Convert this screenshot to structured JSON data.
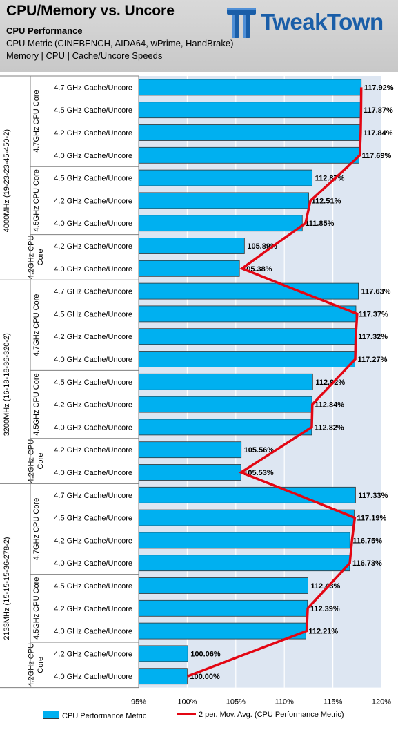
{
  "header": {
    "title": "CPU/Memory vs. Uncore",
    "subtitle": "CPU Performance",
    "desc1": "CPU Metric (CINEBENCH, AIDA64, wPrime, HandBrake)",
    "desc2": "Memory | CPU | Cache/Uncore Speeds",
    "logo_text": "TweakTown"
  },
  "colors": {
    "bar": "#00b0f0",
    "line": "#e30613",
    "plot_bg": "#dde6f2"
  },
  "legend": {
    "placement": "bottom",
    "bar_label": "CPU Performance Metric",
    "line_label": "2 per. Mov. Avg. (CPU Performance Metric)"
  },
  "chart_data": {
    "type": "bar",
    "orientation": "horizontal",
    "xlim": [
      95,
      120
    ],
    "x_ticks": [
      "95%",
      "100%",
      "105%",
      "110%",
      "115%",
      "120%"
    ],
    "x_tick_values": [
      95,
      100,
      105,
      110,
      115,
      120
    ],
    "grid": true,
    "memory_groups": [
      {
        "label": "4000MHz (19-23-23-45-450-2)",
        "cpu_groups": [
          {
            "label": "4.7GHz CPU Core",
            "bars": [
              {
                "label": "4.7 GHz Cache/Uncore",
                "value": 117.92,
                "value_label": "117.92%",
                "mov_avg": 117.92
              },
              {
                "label": "4.5 GHz Cache/Uncore",
                "value": 117.87,
                "value_label": "117.87%",
                "mov_avg": 117.9
              },
              {
                "label": "4.2 GHz Cache/Uncore",
                "value": 117.84,
                "value_label": "117.84%",
                "mov_avg": 117.86
              },
              {
                "label": "4.0 GHz Cache/Uncore",
                "value": 117.69,
                "value_label": "117.69%",
                "mov_avg": 117.77
              }
            ]
          },
          {
            "label": "4.5GHz CPU Core",
            "bars": [
              {
                "label": "4.5 GHz Cache/Uncore",
                "value": 112.87,
                "value_label": "112.87%",
                "mov_avg": 115.28
              },
              {
                "label": "4.2 GHz Cache/Uncore",
                "value": 112.51,
                "value_label": "112.51%",
                "mov_avg": 112.69
              },
              {
                "label": "4.0 GHz Cache/Uncore",
                "value": 111.85,
                "value_label": "111.85%",
                "mov_avg": 112.18
              }
            ]
          },
          {
            "label": "4.2GHz CPU Core",
            "bars": [
              {
                "label": "4.2 GHz Cache/Uncore",
                "value": 105.89,
                "value_label": "105.89%",
                "mov_avg": 108.87
              },
              {
                "label": "4.0 GHz Cache/Uncore",
                "value": 105.38,
                "value_label": "105.38%",
                "mov_avg": 105.64
              }
            ]
          }
        ]
      },
      {
        "label": "3200MHz (16-18-18-36-320-2)",
        "cpu_groups": [
          {
            "label": "4.7GHz CPU Core",
            "bars": [
              {
                "label": "4.7 GHz Cache/Uncore",
                "value": 117.63,
                "value_label": "117.63%",
                "mov_avg": 111.51
              },
              {
                "label": "4.5 GHz Cache/Uncore",
                "value": 117.37,
                "value_label": "117.37%",
                "mov_avg": 117.5
              },
              {
                "label": "4.2 GHz Cache/Uncore",
                "value": 117.32,
                "value_label": "117.32%",
                "mov_avg": 117.35
              },
              {
                "label": "4.0 GHz Cache/Uncore",
                "value": 117.27,
                "value_label": "117.27%",
                "mov_avg": 117.3
              }
            ]
          },
          {
            "label": "4.5GHz CPU Core",
            "bars": [
              {
                "label": "4.5 GHz Cache/Uncore",
                "value": 112.92,
                "value_label": "112.92%",
                "mov_avg": 115.1
              },
              {
                "label": "4.2 GHz Cache/Uncore",
                "value": 112.84,
                "value_label": "112.84%",
                "mov_avg": 112.88
              },
              {
                "label": "4.0 GHz Cache/Uncore",
                "value": 112.82,
                "value_label": "112.82%",
                "mov_avg": 112.83
              }
            ]
          },
          {
            "label": "4.2GHz CPU Core",
            "bars": [
              {
                "label": "4.2 GHz Cache/Uncore",
                "value": 105.56,
                "value_label": "105.56%",
                "mov_avg": 109.19
              },
              {
                "label": "4.0 GHz Cache/Uncore",
                "value": 105.53,
                "value_label": "105.53%",
                "mov_avg": 105.55
              }
            ]
          }
        ]
      },
      {
        "label": "2133MHz (15-15-15-36-278-2)",
        "cpu_groups": [
          {
            "label": "4.7GHz CPU Core",
            "bars": [
              {
                "label": "4.7 GHz Cache/Uncore",
                "value": 117.33,
                "value_label": "117.33%",
                "mov_avg": 111.43
              },
              {
                "label": "4.5 GHz Cache/Uncore",
                "value": 117.19,
                "value_label": "117.19%",
                "mov_avg": 117.26
              },
              {
                "label": "4.2 GHz Cache/Uncore",
                "value": 116.75,
                "value_label": "116.75%",
                "mov_avg": 116.97
              },
              {
                "label": "4.0 GHz Cache/Uncore",
                "value": 116.73,
                "value_label": "116.73%",
                "mov_avg": 116.74
              }
            ]
          },
          {
            "label": "4.5GHz CPU Core",
            "bars": [
              {
                "label": "4.5 GHz Cache/Uncore",
                "value": 112.43,
                "value_label": "112.43%",
                "mov_avg": 114.58
              },
              {
                "label": "4.2 GHz Cache/Uncore",
                "value": 112.39,
                "value_label": "112.39%",
                "mov_avg": 112.41
              },
              {
                "label": "4.0 GHz Cache/Uncore",
                "value": 112.21,
                "value_label": "112.21%",
                "mov_avg": 112.3
              }
            ]
          },
          {
            "label": "4.2GHz CPU Core",
            "bars": [
              {
                "label": "4.2 GHz Cache/Uncore",
                "value": 100.06,
                "value_label": "100.06%",
                "mov_avg": 106.14
              },
              {
                "label": "4.0 GHz Cache/Uncore",
                "value": 100.0,
                "value_label": "100.00%",
                "mov_avg": 100.03
              }
            ]
          }
        ]
      }
    ]
  }
}
